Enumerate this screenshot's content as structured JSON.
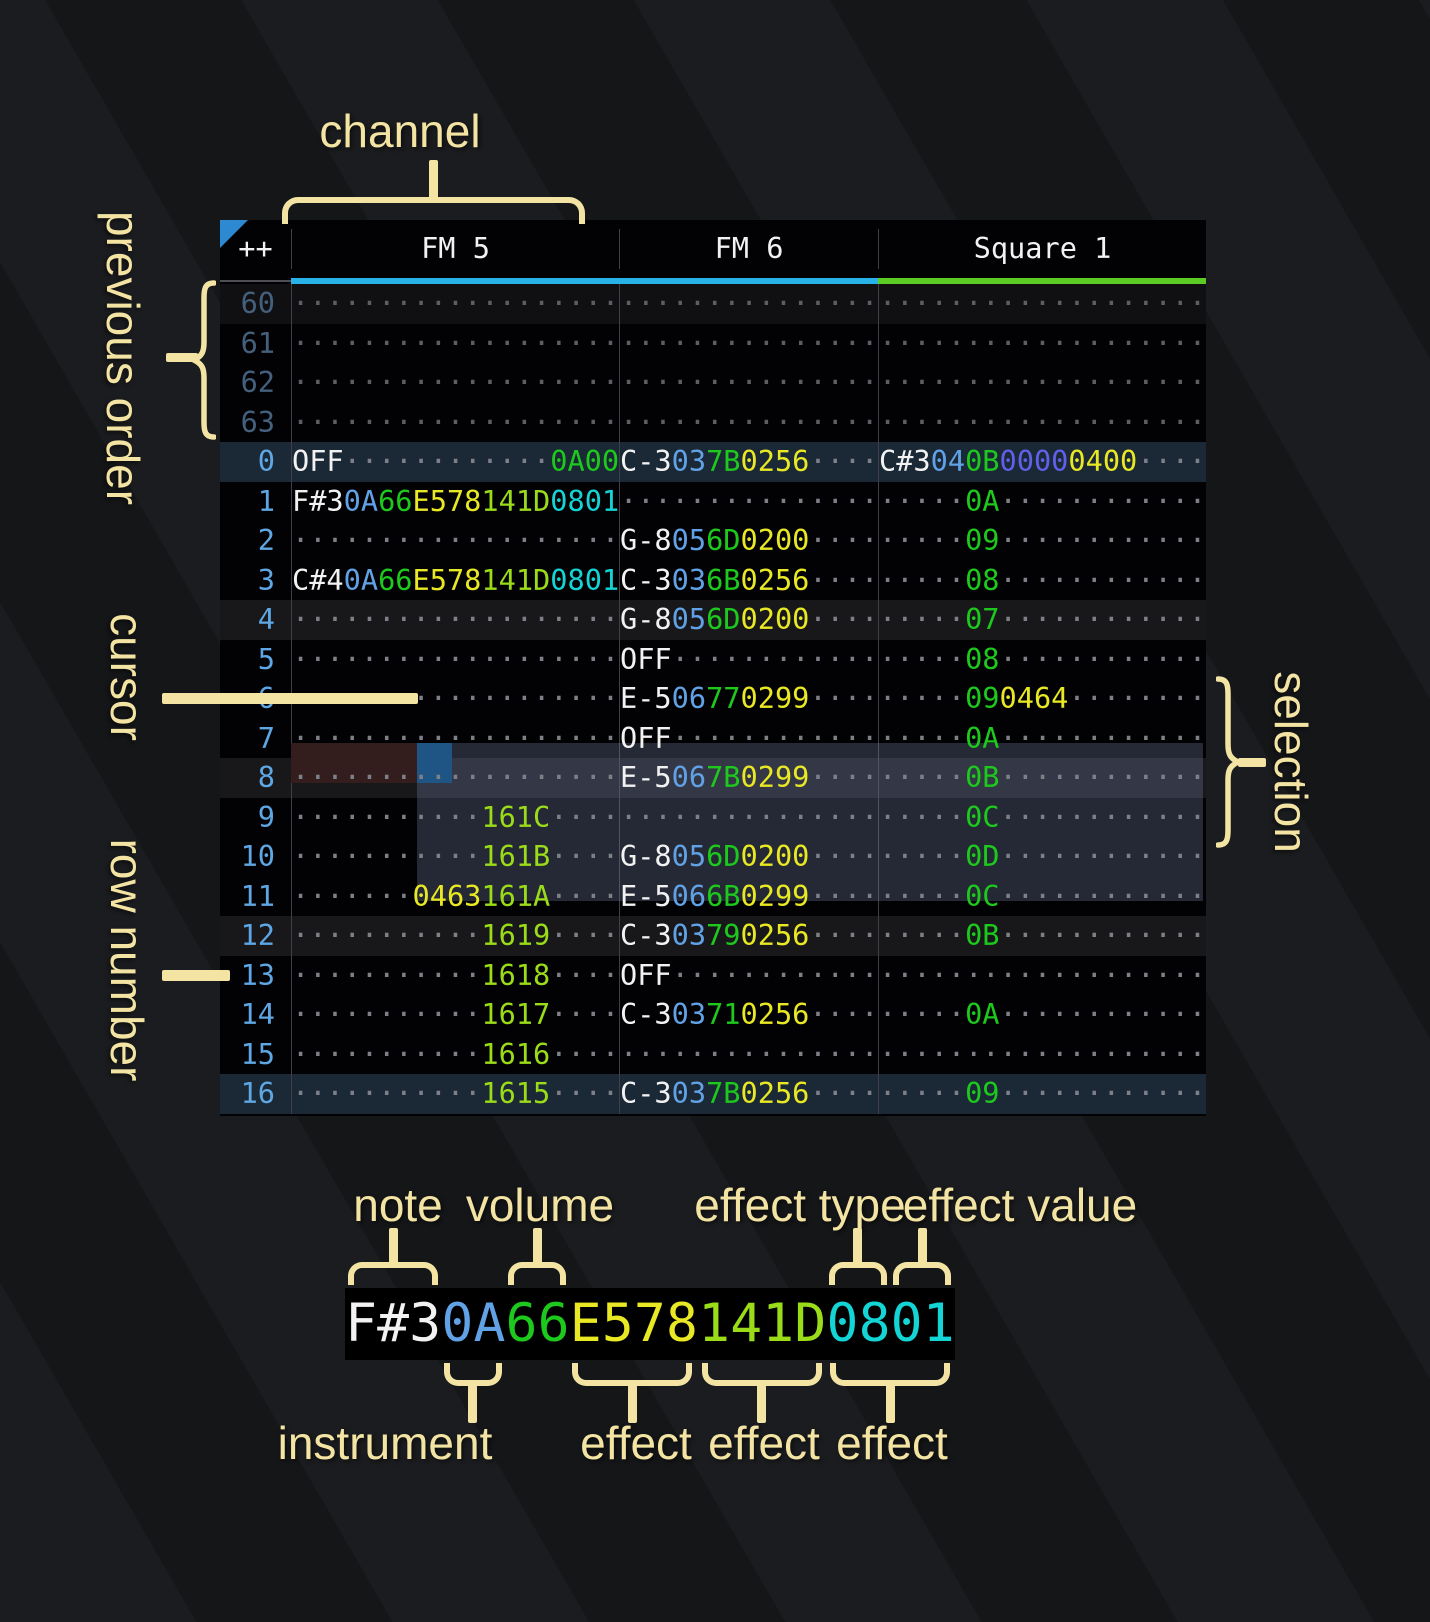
{
  "labels": {
    "channel": "channel",
    "previous_order": "previous order",
    "cursor": "cursor",
    "row_number": "row number",
    "selection": "selection",
    "note": "note",
    "volume": "volume",
    "effect_type": "effect type",
    "effect_value": "effect value",
    "instrument": "instrument",
    "effect": "effect"
  },
  "header": {
    "corner": "++",
    "channels": [
      {
        "name": "FM 5",
        "underline": "#29b2e8"
      },
      {
        "name": "FM 6",
        "underline": "#29b2e8"
      },
      {
        "name": "Square 1",
        "underline": "#5ccc24"
      }
    ]
  },
  "colors": {
    "note": "#f2f2f2",
    "ins": "#61a1e6",
    "vol": "#1dc91d",
    "fx_yellow": "#e8e824",
    "fx_lime": "#9bdc19",
    "fx_cyan": "#13d5d5",
    "fx_indigo": "#6060e8",
    "fx_green": "#1dc91d",
    "dots": "#7e8088",
    "cursor": "#1e5585",
    "cursor_row": "#341d1d",
    "selection": "rgba(118,128,168,0.30)",
    "annotation": "#f3e4a3",
    "corner_triangle": "#2d8ad2"
  },
  "state": {
    "cursor_row": 6,
    "cursor_channel": "FM 5",
    "selection_rows": "6-9",
    "previous_order_rows": "60-63",
    "highlighted_rows": [
      0,
      16
    ]
  },
  "pattern": {
    "prev_rows": [
      {
        "num": "60",
        "cls": "hl-beat-dim",
        "cells": [
          [
            {
              "t": "···················",
              "c": "d"
            }
          ],
          [
            {
              "t": "···············",
              "c": "d"
            }
          ],
          [
            {
              "t": "···················",
              "c": "d"
            }
          ]
        ]
      },
      {
        "num": "61",
        "cls": "",
        "cells": [
          [
            {
              "t": "···················",
              "c": "d"
            }
          ],
          [
            {
              "t": "···············",
              "c": "d"
            }
          ],
          [
            {
              "t": "···················",
              "c": "d"
            }
          ]
        ]
      },
      {
        "num": "62",
        "cls": "",
        "cells": [
          [
            {
              "t": "···················",
              "c": "d"
            }
          ],
          [
            {
              "t": "···············",
              "c": "d"
            }
          ],
          [
            {
              "t": "···················",
              "c": "d"
            }
          ]
        ]
      },
      {
        "num": "63",
        "cls": "",
        "cells": [
          [
            {
              "t": "···················",
              "c": "d"
            }
          ],
          [
            {
              "t": "···············",
              "c": "d"
            }
          ],
          [
            {
              "t": "···················",
              "c": "d"
            }
          ]
        ]
      }
    ],
    "rows": [
      {
        "num": "0",
        "cls": "hl-order",
        "cells": [
          [
            {
              "t": "OFF",
              "c": "n"
            },
            {
              "t": "············",
              "c": "d"
            },
            {
              "t": "0A00",
              "c": "g"
            }
          ],
          [
            {
              "t": "C-3",
              "c": "n"
            },
            {
              "t": "03",
              "c": "i"
            },
            {
              "t": "7B",
              "c": "v"
            },
            {
              "t": "0256",
              "c": "y"
            },
            {
              "t": "····",
              "c": "d"
            }
          ],
          [
            {
              "t": "C#3",
              "c": "n"
            },
            {
              "t": "04",
              "c": "i"
            },
            {
              "t": "0B",
              "c": "v"
            },
            {
              "t": "0000",
              "c": "p"
            },
            {
              "t": "0400",
              "c": "y"
            },
            {
              "t": "····",
              "c": "d"
            }
          ]
        ]
      },
      {
        "num": "1",
        "cls": "",
        "cells": [
          [
            {
              "t": "F#3",
              "c": "n"
            },
            {
              "t": "0A",
              "c": "i"
            },
            {
              "t": "66",
              "c": "v"
            },
            {
              "t": "E578",
              "c": "y"
            },
            {
              "t": "141D",
              "c": "l"
            },
            {
              "t": "0801",
              "c": "c"
            }
          ],
          [
            {
              "t": "···············",
              "c": "d"
            }
          ],
          [
            {
              "t": "·····",
              "c": "d"
            },
            {
              "t": "0A",
              "c": "v"
            },
            {
              "t": "············",
              "c": "d"
            }
          ]
        ]
      },
      {
        "num": "2",
        "cls": "",
        "cells": [
          [
            {
              "t": "···················",
              "c": "d"
            }
          ],
          [
            {
              "t": "G-8",
              "c": "n"
            },
            {
              "t": "05",
              "c": "i"
            },
            {
              "t": "6D",
              "c": "v"
            },
            {
              "t": "0200",
              "c": "y"
            },
            {
              "t": "····",
              "c": "d"
            }
          ],
          [
            {
              "t": "·····",
              "c": "d"
            },
            {
              "t": "09",
              "c": "v"
            },
            {
              "t": "············",
              "c": "d"
            }
          ]
        ]
      },
      {
        "num": "3",
        "cls": "",
        "cells": [
          [
            {
              "t": "C#4",
              "c": "n"
            },
            {
              "t": "0A",
              "c": "i"
            },
            {
              "t": "66",
              "c": "v"
            },
            {
              "t": "E578",
              "c": "y"
            },
            {
              "t": "141D",
              "c": "l"
            },
            {
              "t": "0801",
              "c": "c"
            }
          ],
          [
            {
              "t": "C-3",
              "c": "n"
            },
            {
              "t": "03",
              "c": "i"
            },
            {
              "t": "6B",
              "c": "v"
            },
            {
              "t": "0256",
              "c": "y"
            },
            {
              "t": "····",
              "c": "d"
            }
          ],
          [
            {
              "t": "·····",
              "c": "d"
            },
            {
              "t": "08",
              "c": "v"
            },
            {
              "t": "············",
              "c": "d"
            }
          ]
        ]
      },
      {
        "num": "4",
        "cls": "hl-beat",
        "cells": [
          [
            {
              "t": "···················",
              "c": "d"
            }
          ],
          [
            {
              "t": "G-8",
              "c": "n"
            },
            {
              "t": "05",
              "c": "i"
            },
            {
              "t": "6D",
              "c": "v"
            },
            {
              "t": "0200",
              "c": "y"
            },
            {
              "t": "····",
              "c": "d"
            }
          ],
          [
            {
              "t": "·····",
              "c": "d"
            },
            {
              "t": "07",
              "c": "v"
            },
            {
              "t": "············",
              "c": "d"
            }
          ]
        ]
      },
      {
        "num": "5",
        "cls": "",
        "cells": [
          [
            {
              "t": "···················",
              "c": "d"
            }
          ],
          [
            {
              "t": "OFF",
              "c": "n"
            },
            {
              "t": "············",
              "c": "d"
            }
          ],
          [
            {
              "t": "·····",
              "c": "d"
            },
            {
              "t": "08",
              "c": "v"
            },
            {
              "t": "············",
              "c": "d"
            }
          ]
        ]
      },
      {
        "num": "6",
        "cls": "",
        "cells": [
          [
            {
              "t": "···················",
              "c": "d"
            }
          ],
          [
            {
              "t": "E-5",
              "c": "n"
            },
            {
              "t": "06",
              "c": "i"
            },
            {
              "t": "77",
              "c": "v"
            },
            {
              "t": "0299",
              "c": "y"
            },
            {
              "t": "····",
              "c": "d"
            }
          ],
          [
            {
              "t": "·····",
              "c": "d"
            },
            {
              "t": "09",
              "c": "v"
            },
            {
              "t": "0464",
              "c": "y"
            },
            {
              "t": "········",
              "c": "d"
            }
          ]
        ]
      },
      {
        "num": "7",
        "cls": "",
        "cells": [
          [
            {
              "t": "···················",
              "c": "d"
            }
          ],
          [
            {
              "t": "OFF",
              "c": "n"
            },
            {
              "t": "············",
              "c": "d"
            }
          ],
          [
            {
              "t": "·····",
              "c": "d"
            },
            {
              "t": "0A",
              "c": "v"
            },
            {
              "t": "············",
              "c": "d"
            }
          ]
        ]
      },
      {
        "num": "8",
        "cls": "hl-beat",
        "cells": [
          [
            {
              "t": "···················",
              "c": "d"
            }
          ],
          [
            {
              "t": "E-5",
              "c": "n"
            },
            {
              "t": "06",
              "c": "i"
            },
            {
              "t": "7B",
              "c": "v"
            },
            {
              "t": "0299",
              "c": "y"
            },
            {
              "t": "····",
              "c": "d"
            }
          ],
          [
            {
              "t": "·····",
              "c": "d"
            },
            {
              "t": "0B",
              "c": "v"
            },
            {
              "t": "············",
              "c": "d"
            }
          ]
        ]
      },
      {
        "num": "9",
        "cls": "",
        "cells": [
          [
            {
              "t": "···········",
              "c": "d"
            },
            {
              "t": "161C",
              "c": "l"
            },
            {
              "t": "····",
              "c": "d"
            }
          ],
          [
            {
              "t": "···············",
              "c": "d"
            }
          ],
          [
            {
              "t": "·····",
              "c": "d"
            },
            {
              "t": "0C",
              "c": "v"
            },
            {
              "t": "············",
              "c": "d"
            }
          ]
        ]
      },
      {
        "num": "10",
        "cls": "",
        "cells": [
          [
            {
              "t": "···········",
              "c": "d"
            },
            {
              "t": "161B",
              "c": "l"
            },
            {
              "t": "····",
              "c": "d"
            }
          ],
          [
            {
              "t": "G-8",
              "c": "n"
            },
            {
              "t": "05",
              "c": "i"
            },
            {
              "t": "6D",
              "c": "v"
            },
            {
              "t": "0200",
              "c": "y"
            },
            {
              "t": "····",
              "c": "d"
            }
          ],
          [
            {
              "t": "·····",
              "c": "d"
            },
            {
              "t": "0D",
              "c": "v"
            },
            {
              "t": "············",
              "c": "d"
            }
          ]
        ]
      },
      {
        "num": "11",
        "cls": "",
        "cells": [
          [
            {
              "t": "·······",
              "c": "d"
            },
            {
              "t": "0463",
              "c": "y"
            },
            {
              "t": "161A",
              "c": "l"
            },
            {
              "t": "····",
              "c": "d"
            }
          ],
          [
            {
              "t": "E-5",
              "c": "n"
            },
            {
              "t": "06",
              "c": "i"
            },
            {
              "t": "6B",
              "c": "v"
            },
            {
              "t": "0299",
              "c": "y"
            },
            {
              "t": "····",
              "c": "d"
            }
          ],
          [
            {
              "t": "·····",
              "c": "d"
            },
            {
              "t": "0C",
              "c": "v"
            },
            {
              "t": "············",
              "c": "d"
            }
          ]
        ]
      },
      {
        "num": "12",
        "cls": "hl-beat",
        "cells": [
          [
            {
              "t": "···········",
              "c": "d"
            },
            {
              "t": "1619",
              "c": "l"
            },
            {
              "t": "····",
              "c": "d"
            }
          ],
          [
            {
              "t": "C-3",
              "c": "n"
            },
            {
              "t": "03",
              "c": "i"
            },
            {
              "t": "79",
              "c": "v"
            },
            {
              "t": "0256",
              "c": "y"
            },
            {
              "t": "····",
              "c": "d"
            }
          ],
          [
            {
              "t": "·····",
              "c": "d"
            },
            {
              "t": "0B",
              "c": "v"
            },
            {
              "t": "············",
              "c": "d"
            }
          ]
        ]
      },
      {
        "num": "13",
        "cls": "",
        "cells": [
          [
            {
              "t": "···········",
              "c": "d"
            },
            {
              "t": "1618",
              "c": "l"
            },
            {
              "t": "····",
              "c": "d"
            }
          ],
          [
            {
              "t": "OFF",
              "c": "n"
            },
            {
              "t": "············",
              "c": "d"
            }
          ],
          [
            {
              "t": "···················",
              "c": "d"
            }
          ]
        ]
      },
      {
        "num": "14",
        "cls": "",
        "cells": [
          [
            {
              "t": "···········",
              "c": "d"
            },
            {
              "t": "1617",
              "c": "l"
            },
            {
              "t": "····",
              "c": "d"
            }
          ],
          [
            {
              "t": "C-3",
              "c": "n"
            },
            {
              "t": "03",
              "c": "i"
            },
            {
              "t": "71",
              "c": "v"
            },
            {
              "t": "0256",
              "c": "y"
            },
            {
              "t": "····",
              "c": "d"
            }
          ],
          [
            {
              "t": "·····",
              "c": "d"
            },
            {
              "t": "0A",
              "c": "v"
            },
            {
              "t": "············",
              "c": "d"
            }
          ]
        ]
      },
      {
        "num": "15",
        "cls": "",
        "cells": [
          [
            {
              "t": "···········",
              "c": "d"
            },
            {
              "t": "1616",
              "c": "l"
            },
            {
              "t": "····",
              "c": "d"
            }
          ],
          [
            {
              "t": "···············",
              "c": "d"
            }
          ],
          [
            {
              "t": "···················",
              "c": "d"
            }
          ]
        ]
      },
      {
        "num": "16",
        "cls": "hl-order",
        "cells": [
          [
            {
              "t": "···········",
              "c": "d"
            },
            {
              "t": "1615",
              "c": "l"
            },
            {
              "t": "····",
              "c": "d"
            }
          ],
          [
            {
              "t": "C-3",
              "c": "n"
            },
            {
              "t": "03",
              "c": "i"
            },
            {
              "t": "7B",
              "c": "v"
            },
            {
              "t": "0256",
              "c": "y"
            },
            {
              "t": "····",
              "c": "d"
            }
          ],
          [
            {
              "t": "·····",
              "c": "d"
            },
            {
              "t": "09",
              "c": "v"
            },
            {
              "t": "············",
              "c": "d"
            }
          ]
        ]
      }
    ]
  },
  "zoom_cell": {
    "segments": [
      {
        "t": "F#3",
        "c": "n"
      },
      {
        "t": "0A",
        "c": "i"
      },
      {
        "t": "66",
        "c": "v"
      },
      {
        "t": "E578",
        "c": "y"
      },
      {
        "t": "141D",
        "c": "l"
      },
      {
        "t": "0801",
        "c": "c"
      }
    ]
  }
}
